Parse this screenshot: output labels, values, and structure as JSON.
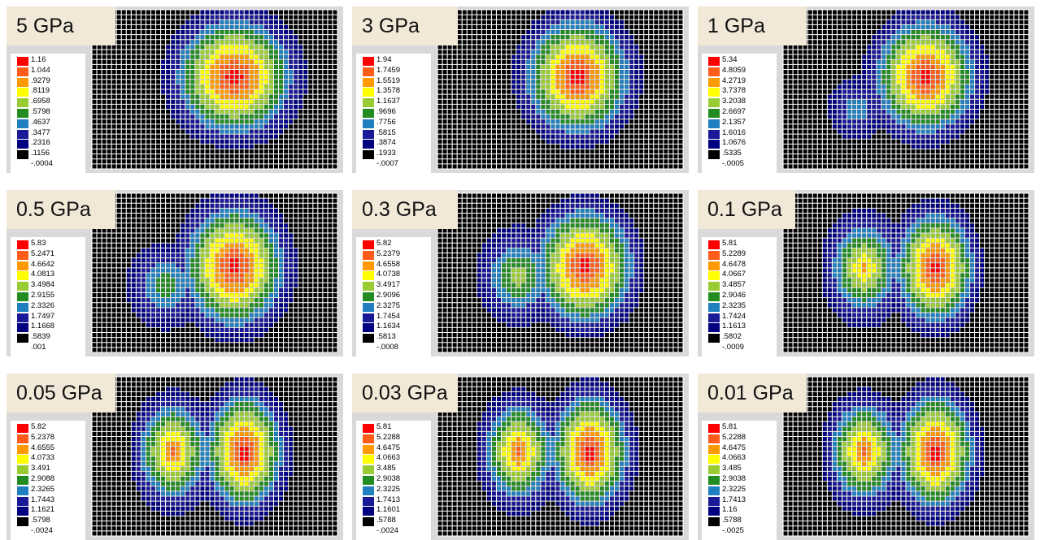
{
  "palette": [
    "#ff0000",
    "#ff5c1a",
    "#ff9900",
    "#ffff00",
    "#99cc33",
    "#228b22",
    "#1f7fbf",
    "#1a1a99",
    "#000080",
    "#000000"
  ],
  "grid_line_color": "#ffffff",
  "chart_data": [
    {
      "type": "heatmap",
      "title": "5 GPa",
      "legend": [
        "1.16",
        "1.044",
        ".9279",
        ".8119",
        ".6958",
        ".5798",
        ".4637",
        ".3477",
        ".2316",
        ".1156",
        "-.0004"
      ],
      "blobs": [
        {
          "cx": 0.58,
          "cy": 0.42,
          "rx": 0.3,
          "ry": 0.46,
          "peak": 1.0
        }
      ]
    },
    {
      "type": "heatmap",
      "title": "3 GPa",
      "legend": [
        "1.94",
        "1.7459",
        "1.5519",
        "1.3578",
        "1.1637",
        ".9696",
        ".7756",
        ".5815",
        ".3874",
        ".1933",
        "-.0007"
      ],
      "blobs": [
        {
          "cx": 0.57,
          "cy": 0.42,
          "rx": 0.27,
          "ry": 0.46,
          "peak": 1.0
        }
      ]
    },
    {
      "type": "heatmap",
      "title": "1 GPa",
      "legend": [
        "5.34",
        "4.8059",
        "4.2719",
        "3.7378",
        "3.2038",
        "2.6697",
        "2.1357",
        "1.6016",
        "1.0676",
        ".5335",
        "-.0005"
      ],
      "blobs": [
        {
          "cx": 0.58,
          "cy": 0.42,
          "rx": 0.26,
          "ry": 0.45,
          "peak": 1.0
        },
        {
          "cx": 0.3,
          "cy": 0.62,
          "rx": 0.12,
          "ry": 0.2,
          "peak": 0.35
        }
      ]
    },
    {
      "type": "heatmap",
      "title": "0.5 GPa",
      "legend": [
        "5.83",
        "5.2471",
        "4.6642",
        "4.0813",
        "3.4984",
        "2.9155",
        "2.3326",
        "1.7497",
        "1.1668",
        ".5839",
        ".001"
      ],
      "blobs": [
        {
          "cx": 0.58,
          "cy": 0.46,
          "rx": 0.26,
          "ry": 0.48,
          "peak": 1.0
        },
        {
          "cx": 0.3,
          "cy": 0.58,
          "rx": 0.16,
          "ry": 0.28,
          "peak": 0.45
        }
      ]
    },
    {
      "type": "heatmap",
      "title": "0.3 GPa",
      "legend": [
        "5.82",
        "5.2379",
        "4.6558",
        "4.0738",
        "3.4917",
        "2.9096",
        "2.3275",
        "1.7454",
        "1.1634",
        ".5813",
        "-.0008"
      ],
      "blobs": [
        {
          "cx": 0.6,
          "cy": 0.46,
          "rx": 0.25,
          "ry": 0.46,
          "peak": 1.0
        },
        {
          "cx": 0.33,
          "cy": 0.52,
          "rx": 0.18,
          "ry": 0.32,
          "peak": 0.55
        }
      ]
    },
    {
      "type": "heatmap",
      "title": "0.1 GPa",
      "legend": [
        "5.81",
        "5.2289",
        "4.6478",
        "4.0667",
        "3.4857",
        "2.9046",
        "2.3235",
        "1.7424",
        "1.1613",
        ".5802",
        "-.0009"
      ],
      "blobs": [
        {
          "cx": 0.62,
          "cy": 0.47,
          "rx": 0.2,
          "ry": 0.44,
          "peak": 1.0
        },
        {
          "cx": 0.33,
          "cy": 0.47,
          "rx": 0.18,
          "ry": 0.38,
          "peak": 0.72
        }
      ]
    },
    {
      "type": "heatmap",
      "title": "0.05 GPa",
      "legend": [
        "5.82",
        "5.2378",
        "4.6555",
        "4.0733",
        "3.491",
        "2.9088",
        "2.3265",
        "1.7443",
        "1.1621",
        ".5798",
        "-.0024"
      ],
      "blobs": [
        {
          "cx": 0.62,
          "cy": 0.47,
          "rx": 0.2,
          "ry": 0.46,
          "peak": 1.0
        },
        {
          "cx": 0.33,
          "cy": 0.47,
          "rx": 0.18,
          "ry": 0.4,
          "peak": 0.82
        }
      ]
    },
    {
      "type": "heatmap",
      "title": "0.03 GPa",
      "legend": [
        "5.81",
        "5.2288",
        "4.6475",
        "4.0663",
        "3.485",
        "2.9038",
        "2.3225",
        "1.7413",
        "1.1601",
        ".5788",
        "-.0024"
      ],
      "blobs": [
        {
          "cx": 0.62,
          "cy": 0.47,
          "rx": 0.2,
          "ry": 0.46,
          "peak": 1.0
        },
        {
          "cx": 0.33,
          "cy": 0.47,
          "rx": 0.18,
          "ry": 0.4,
          "peak": 0.84
        }
      ]
    },
    {
      "type": "heatmap",
      "title": "0.01 GPa",
      "legend": [
        "5.81",
        "5.2288",
        "4.6475",
        "4.0663",
        "3.485",
        "2.9038",
        "2.3225",
        "1.7413",
        "1.16",
        ".5788",
        "-.0025"
      ],
      "blobs": [
        {
          "cx": 0.62,
          "cy": 0.47,
          "rx": 0.2,
          "ry": 0.46,
          "peak": 1.0
        },
        {
          "cx": 0.33,
          "cy": 0.47,
          "rx": 0.18,
          "ry": 0.4,
          "peak": 0.85
        }
      ]
    }
  ]
}
